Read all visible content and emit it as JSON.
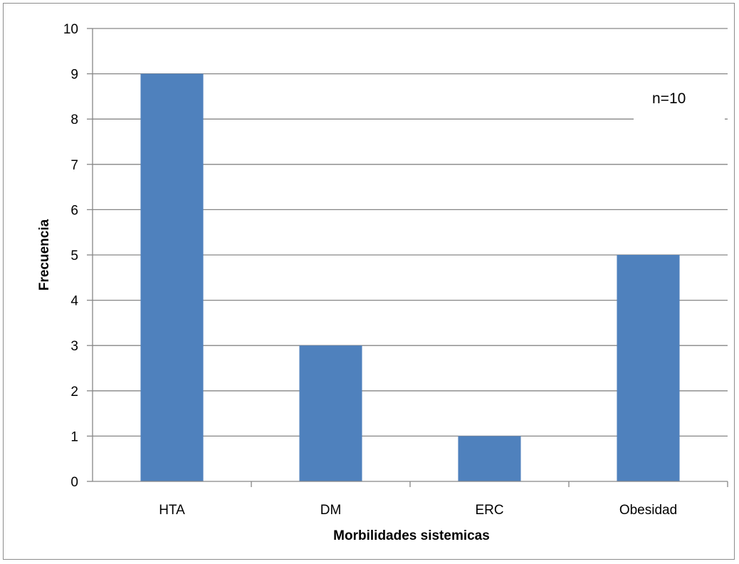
{
  "chart_data": {
    "type": "bar",
    "categories": [
      "HTA",
      "DM",
      "ERC",
      "Obesidad"
    ],
    "values": [
      9,
      3,
      1,
      5
    ],
    "xlabel": "Morbilidades sistemicas",
    "ylabel": "Frecuencia",
    "ylim": [
      0,
      10
    ],
    "yticks": [
      0,
      1,
      2,
      3,
      4,
      5,
      6,
      7,
      8,
      9,
      10
    ],
    "grid": true,
    "annotation": "n=10",
    "colors": {
      "bar": "#4f81bd",
      "grid": "#868686"
    }
  }
}
